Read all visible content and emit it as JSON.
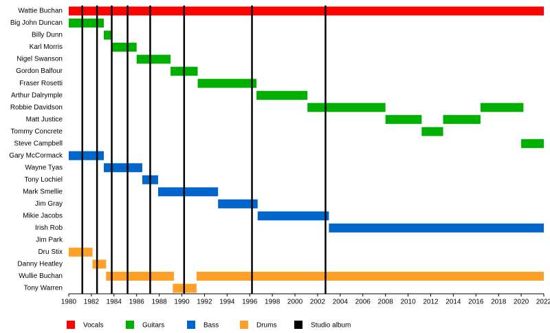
{
  "chart_data": {
    "type": "timeline",
    "xlim": [
      1980,
      2022
    ],
    "xticks": [
      1980,
      1982,
      1984,
      1986,
      1988,
      1990,
      1992,
      1994,
      1996,
      1998,
      2000,
      2002,
      2004,
      2006,
      2008,
      2010,
      2012,
      2014,
      2016,
      2018,
      2020,
      2022
    ],
    "series": [
      {
        "name": "Vocals",
        "color": "#ff0000",
        "members": [
          {
            "name": "Wattie Buchan",
            "periods": [
              [
                1980,
                2022
              ]
            ]
          }
        ]
      },
      {
        "name": "Guitars",
        "color": "#00b000",
        "members": [
          {
            "name": "Big John Duncan",
            "periods": [
              [
                1980,
                1983.1
              ]
            ]
          },
          {
            "name": "Billy Dunn",
            "periods": [
              [
                1983.1,
                1983.8
              ]
            ]
          },
          {
            "name": "Karl Morris",
            "periods": [
              [
                1983.8,
                1986
              ]
            ]
          },
          {
            "name": "Nigel Swanson",
            "periods": [
              [
                1986,
                1989
              ]
            ]
          },
          {
            "name": "Gordon Balfour",
            "periods": [
              [
                1989,
                1991.4
              ]
            ]
          },
          {
            "name": "Fraser Rosetti",
            "periods": [
              [
                1991.4,
                1996.6
              ]
            ]
          },
          {
            "name": "Arthur Dalrymple",
            "periods": [
              [
                1996.6,
                2001.1
              ]
            ]
          },
          {
            "name": "Robbie Davidson",
            "periods": [
              [
                2001.1,
                2008
              ],
              [
                2016.4,
                2020.2
              ]
            ]
          },
          {
            "name": "Matt Justice",
            "periods": [
              [
                2008,
                2011.2
              ],
              [
                2013.1,
                2016.4
              ]
            ]
          },
          {
            "name": "Tommy Concrete",
            "periods": [
              [
                2011.2,
                2013.1
              ]
            ]
          },
          {
            "name": "Steve Campbell",
            "periods": [
              [
                2020,
                2022
              ]
            ]
          }
        ]
      },
      {
        "name": "Bass",
        "color": "#0066cc",
        "members": [
          {
            "name": "Gary McCormack",
            "periods": [
              [
                1980,
                1983.1
              ]
            ]
          },
          {
            "name": "Wayne Tyas",
            "periods": [
              [
                1983.1,
                1986.5
              ]
            ]
          },
          {
            "name": "Tony Lochiel",
            "periods": [
              [
                1986.5,
                1987.9
              ]
            ]
          },
          {
            "name": "Mark Smellie",
            "periods": [
              [
                1987.9,
                1993.2
              ]
            ]
          },
          {
            "name": "Jim Gray",
            "periods": [
              [
                1993.2,
                1996.7
              ]
            ]
          },
          {
            "name": "Mikie Jacobs",
            "periods": [
              [
                1996.7,
                2003
              ]
            ]
          },
          {
            "name": "Irish Rob",
            "periods": [
              [
                2003,
                2022
              ]
            ]
          }
        ]
      },
      {
        "name": "Drums",
        "color": "#ffa028",
        "members": [
          {
            "name": "Jim Park",
            "periods": []
          },
          {
            "name": "Dru Stix",
            "periods": [
              [
                1980,
                1982.1
              ]
            ]
          },
          {
            "name": "Danny Heatley",
            "periods": [
              [
                1982.1,
                1983.3
              ]
            ]
          },
          {
            "name": "Wullie Buchan",
            "periods": [
              [
                1983.3,
                1989.3
              ],
              [
                1991.3,
                2022
              ]
            ]
          },
          {
            "name": "Tony Warren",
            "periods": [
              [
                1989.2,
                1991.3
              ]
            ]
          }
        ]
      }
    ],
    "markers": {
      "name": "Studio album",
      "color": "#000000",
      "x": [
        1981.2,
        1982.5,
        1983.8,
        1985.2,
        1987.2,
        1990.2,
        1996.2,
        2002.7
      ]
    }
  }
}
